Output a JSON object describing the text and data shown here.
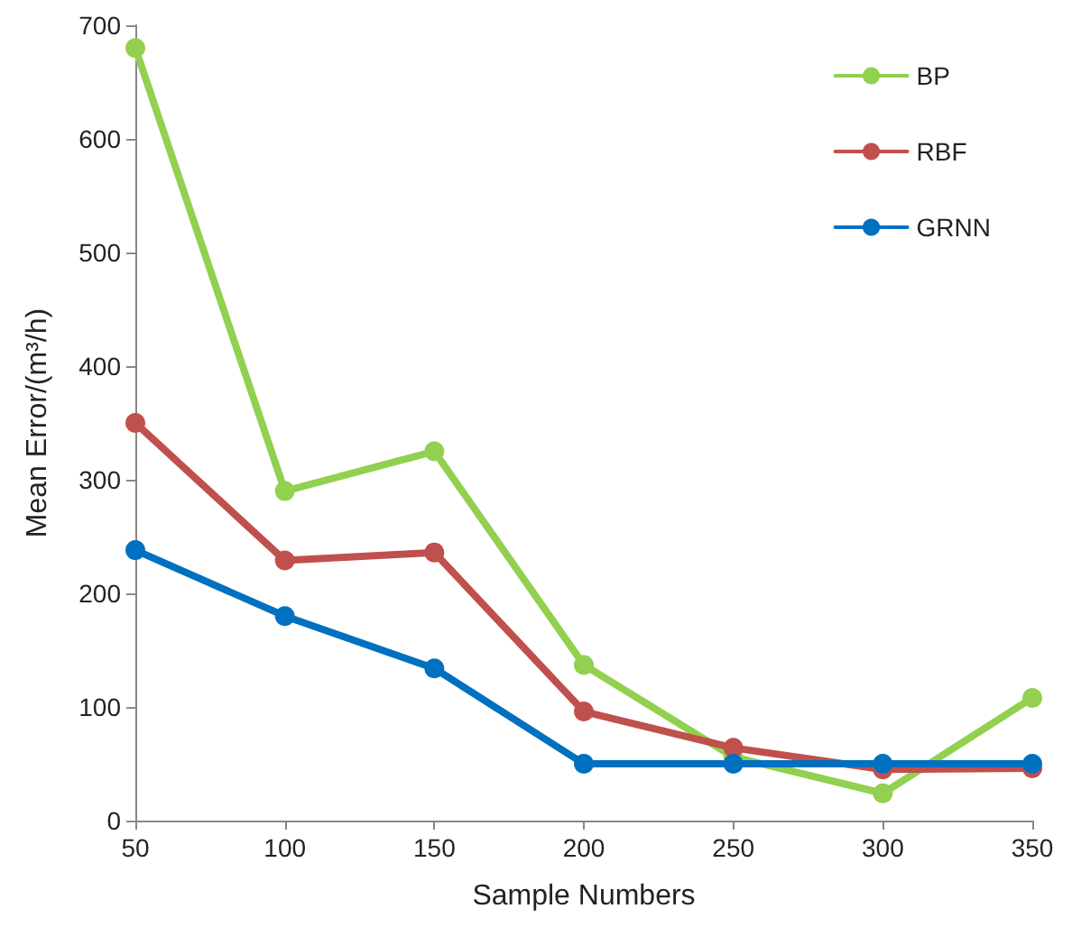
{
  "chart_data": {
    "type": "line",
    "xlabel": "Sample Numbers",
    "ylabel": "Mean Error/(m³/h)",
    "categories": [
      "50",
      "100",
      "150",
      "200",
      "250",
      "300",
      "350"
    ],
    "series": [
      {
        "name": "BP",
        "color": "#92d050",
        "values": [
          680,
          290,
          325,
          137,
          56,
          24,
          108
        ]
      },
      {
        "name": "RBF",
        "color": "#c0504d",
        "values": [
          350,
          229,
          236,
          96,
          64,
          45,
          46
        ]
      },
      {
        "name": "GRNN",
        "color": "#0070c0",
        "values": [
          238,
          180,
          134,
          50,
          50,
          50,
          50
        ]
      }
    ],
    "ylim": [
      0,
      700
    ],
    "yticks": [
      0,
      100,
      200,
      300,
      400,
      500,
      600,
      700
    ],
    "grid": false,
    "legend": "top right",
    "marker": "circle",
    "line_style": "solid"
  }
}
